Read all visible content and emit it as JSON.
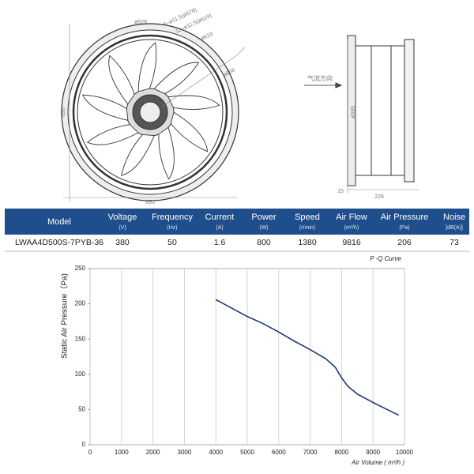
{
  "drawing": {
    "front_labels": [
      "ø528",
      "6–ø11.5(ø578)",
      "12–ø11.5(ø619)",
      "ø619",
      "ø656",
      "650",
      "650"
    ],
    "side_labels": [
      "气流方向",
      "ø595",
      "15",
      "226"
    ]
  },
  "table": {
    "header": [
      [
        "Model",
        ""
      ],
      [
        "Voltage",
        "(V)"
      ],
      [
        "Frequency",
        "(Hz)"
      ],
      [
        "Current",
        "(A)"
      ],
      [
        "Power",
        "(W)"
      ],
      [
        "Speed",
        "(r/min)"
      ],
      [
        "Air Flow",
        "(m³/h)"
      ],
      [
        "Air Pressure",
        "(Pa)"
      ],
      [
        "Noise",
        "[dB(A)]"
      ]
    ],
    "rows": [
      [
        "LWAA4D500S-7PYB-36",
        "380",
        "50",
        "1.6",
        "800",
        "1380",
        "9816",
        "206",
        "73"
      ]
    ]
  },
  "chart_data": {
    "type": "line",
    "title": "P -Q Curve",
    "x_label": "Air Volume ( m³/h )",
    "y_label": "Static Air Pressure（Pa)",
    "x": [
      4000,
      4500,
      5000,
      5500,
      6000,
      6500,
      7000,
      7500,
      7800,
      8000,
      8200,
      8500,
      9000,
      9500,
      9816
    ],
    "values": [
      206,
      194,
      182,
      172,
      160,
      147,
      135,
      122,
      110,
      95,
      83,
      72,
      60,
      49,
      42
    ],
    "color": "#1f3a6e",
    "xlim": [
      0,
      10000
    ],
    "xticks": [
      0,
      1000,
      2000,
      3000,
      4000,
      5000,
      6000,
      7000,
      8000,
      9000,
      10000
    ],
    "ylim": [
      0,
      250
    ],
    "yticks": [
      0,
      50,
      100,
      150,
      200,
      250
    ],
    "grid": true
  }
}
